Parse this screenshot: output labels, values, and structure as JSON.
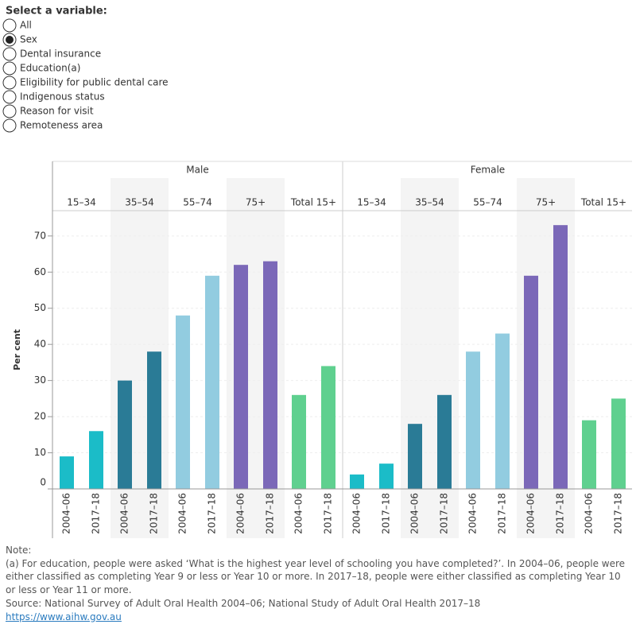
{
  "controls": {
    "label": "Select a variable:",
    "options": [
      "All",
      "Sex",
      "Dental insurance",
      "Education(a)",
      "Eligibility for public dental care",
      "Indigenous status",
      "Reason for visit",
      "Remoteness area"
    ],
    "selected": 1
  },
  "chart_data": {
    "type": "bar",
    "y_label": "Per cent",
    "categories": [
      "2004–06",
      "2017–18"
    ],
    "panels": [
      {
        "name": "Male",
        "groups": [
          {
            "name": "15–34",
            "color": "#1bbcc8",
            "values": [
              9,
              16
            ]
          },
          {
            "name": "35–54",
            "color": "#2a7b96",
            "values": [
              30,
              38
            ]
          },
          {
            "name": "55–74",
            "color": "#92cce0",
            "values": [
              48,
              59
            ]
          },
          {
            "name": "75+",
            "color": "#7b68b8",
            "values": [
              62,
              63
            ]
          },
          {
            "name": "Total 15+",
            "color": "#5fd08f",
            "values": [
              26,
              34
            ]
          }
        ]
      },
      {
        "name": "Female",
        "groups": [
          {
            "name": "15–34",
            "color": "#1bbcc8",
            "values": [
              4,
              7
            ]
          },
          {
            "name": "35–54",
            "color": "#2a7b96",
            "values": [
              18,
              26
            ]
          },
          {
            "name": "55–74",
            "color": "#92cce0",
            "values": [
              38,
              43
            ]
          },
          {
            "name": "75+",
            "color": "#7b68b8",
            "values": [
              59,
              73
            ]
          },
          {
            "name": "Total 15+",
            "color": "#5fd08f",
            "values": [
              19,
              25
            ]
          }
        ]
      }
    ],
    "ylim": [
      0,
      77
    ],
    "yticks": [
      0,
      10,
      20,
      30,
      40,
      50,
      60,
      70
    ],
    "grid": true
  },
  "notes": {
    "heading": "Note:",
    "lines": [
      "(a) For education, people were asked ‘What is the highest year level of schooling you have completed?’. In 2004–06, people were either classified as completing Year 9 or less or Year 10 or more. In 2017–18, people were either classified as completing Year 10 or less or Year 11 or more.",
      "Source: National Survey of Adult Oral Health 2004–06; National Study of Adult Oral Health 2017–18"
    ],
    "link": "https://www.aihw.gov.au"
  }
}
